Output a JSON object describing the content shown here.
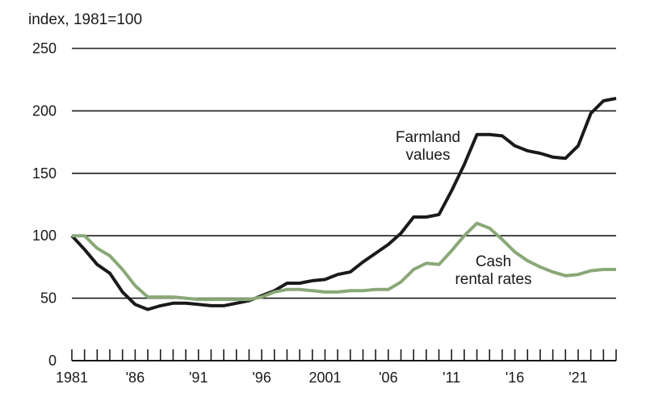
{
  "chart_data": {
    "type": "line",
    "title": "",
    "ylabel": "index, 1981=100",
    "xlabel": "",
    "xlim": [
      1981,
      2024
    ],
    "ylim": [
      0,
      250
    ],
    "yticks": [
      0,
      50,
      100,
      150,
      200,
      250
    ],
    "xtick_labels": [
      {
        "year": 1981,
        "label": "1981"
      },
      {
        "year": 1986,
        "label": "'86"
      },
      {
        "year": 1991,
        "label": "'91"
      },
      {
        "year": 1996,
        "label": "'96"
      },
      {
        "year": 2001,
        "label": "2001"
      },
      {
        "year": 2006,
        "label": "'06"
      },
      {
        "year": 2011,
        "label": "'11"
      },
      {
        "year": 2016,
        "label": "'16"
      },
      {
        "year": 2021,
        "label": "'21"
      }
    ],
    "grid": true,
    "legend": "none",
    "annotations": [
      {
        "series": "Farmland values",
        "lines": [
          "Farmland",
          "values"
        ]
      },
      {
        "series": "Cash rental rates",
        "lines": [
          "Cash",
          "rental rates"
        ]
      }
    ],
    "x": [
      1981,
      1982,
      1983,
      1984,
      1985,
      1986,
      1987,
      1988,
      1989,
      1990,
      1991,
      1992,
      1993,
      1994,
      1995,
      1996,
      1997,
      1998,
      1999,
      2000,
      2001,
      2002,
      2003,
      2004,
      2005,
      2006,
      2007,
      2008,
      2009,
      2010,
      2011,
      2012,
      2013,
      2014,
      2015,
      2016,
      2017,
      2018,
      2019,
      2020,
      2021,
      2022,
      2023,
      2024
    ],
    "series": [
      {
        "name": "Farmland values",
        "color": "#1a1a1a",
        "values": [
          100,
          89,
          77,
          70,
          55,
          45,
          41,
          44,
          46,
          46,
          45,
          44,
          44,
          46,
          48,
          52,
          56,
          62,
          62,
          64,
          65,
          69,
          71,
          79,
          86,
          93,
          102,
          115,
          115,
          117,
          136,
          157,
          181,
          181,
          180,
          172,
          168,
          166,
          163,
          162,
          172,
          198,
          208,
          210
        ]
      },
      {
        "name": "Cash rental rates",
        "color": "#8aa877",
        "values": [
          100,
          100,
          90,
          84,
          73,
          60,
          51,
          51,
          51,
          50,
          49,
          49,
          49,
          49,
          49,
          51,
          55,
          57,
          57,
          56,
          55,
          55,
          56,
          56,
          57,
          57,
          63,
          73,
          78,
          77,
          88,
          100,
          110,
          106,
          97,
          87,
          80,
          75,
          71,
          68,
          69,
          72,
          73,
          73
        ]
      }
    ]
  }
}
